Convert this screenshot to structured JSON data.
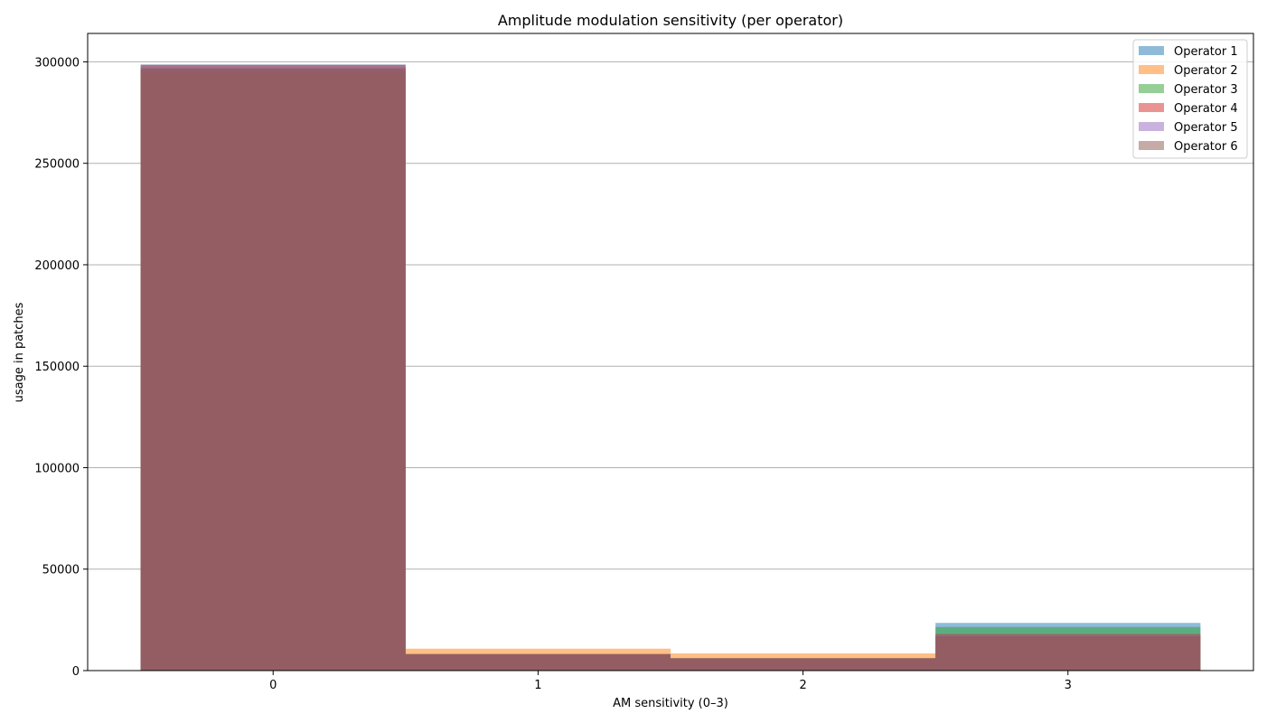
{
  "chart_data": {
    "type": "bar",
    "title": "Amplitude modulation sensitivity (per operator)",
    "xlabel": "AM sensitivity (0–3)",
    "ylabel": "usage in patches",
    "categories": [
      "0",
      "1",
      "2",
      "3"
    ],
    "ylim": [
      0,
      314000
    ],
    "yticks": [
      0,
      50000,
      100000,
      150000,
      200000,
      250000,
      300000
    ],
    "grid": "y",
    "legend_position": "top-right",
    "series": [
      {
        "name": "Operator 1",
        "color": "#1f77b4",
        "values": [
          298700,
          8000,
          6000,
          23500
        ]
      },
      {
        "name": "Operator 2",
        "color": "#ff7f0e",
        "values": [
          295000,
          10800,
          8500,
          16500
        ]
      },
      {
        "name": "Operator 3",
        "color": "#2ca02c",
        "values": [
          297000,
          8200,
          6100,
          21500
        ]
      },
      {
        "name": "Operator 4",
        "color": "#d62728",
        "values": [
          298500,
          8100,
          6000,
          18000
        ]
      },
      {
        "name": "Operator 5",
        "color": "#9467bd",
        "values": [
          297500,
          8000,
          6000,
          17500
        ]
      },
      {
        "name": "Operator 6",
        "color": "#8c564b",
        "values": [
          296500,
          8100,
          6200,
          17000
        ]
      }
    ]
  }
}
